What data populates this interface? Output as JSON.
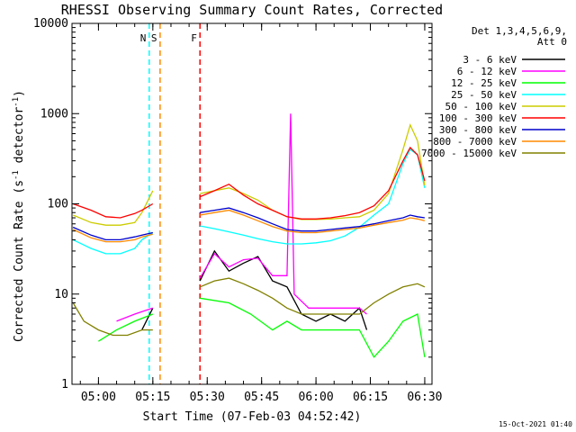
{
  "chart_data": {
    "type": "line",
    "title": "RHESSI Observing Summary Count Rates, Corrected",
    "xlabel": "Start Time (07-Feb-03 04:52:42)",
    "ylabel_main": "Corrected Count Rate (s",
    "ylabel_exp1": "-1",
    "ylabel_mid": " detector",
    "ylabel_exp2": "-1",
    "ylabel_end": ")",
    "y_scale": "log",
    "ylim": [
      1,
      10000
    ],
    "xlim_minutes": [
      "04:52:42",
      "06:32:00"
    ],
    "x_ticks": [
      {
        "label": "05:00",
        "t": "05:00"
      },
      {
        "label": "05:15",
        "t": "05:15"
      },
      {
        "label": "05:30",
        "t": "05:30"
      },
      {
        "label": "05:45",
        "t": "05:45"
      },
      {
        "label": "06:00",
        "t": "06:00"
      },
      {
        "label": "06:15",
        "t": "06:15"
      },
      {
        "label": "06:30",
        "t": "06:30"
      }
    ],
    "y_ticks": [
      {
        "label": "1",
        "v": 1
      },
      {
        "label": "10",
        "v": 10
      },
      {
        "label": "100",
        "v": 100
      },
      {
        "label": "1000",
        "v": 1000
      },
      {
        "label": "10000",
        "v": 10000
      }
    ],
    "legend_header": [
      "Det 1,3,4,5,6,9,",
      "Att 0"
    ],
    "legend_position": "right",
    "series": [
      {
        "name": "3 - 6 keV",
        "color": "#000000",
        "x": [
          "05:12",
          "05:15",
          "05:24",
          "05:28",
          "05:32",
          "05:36",
          "05:40",
          "05:44",
          "05:48",
          "05:52",
          "05:56",
          "06:00",
          "06:04",
          "06:08",
          "06:12",
          "06:14"
        ],
        "y": [
          4,
          7,
          null,
          14,
          30,
          18,
          22,
          26,
          14,
          12,
          6,
          5,
          6,
          5,
          7,
          4
        ]
      },
      {
        "name": "6 - 12 keV",
        "color": "#ff00ff",
        "x": [
          "05:05",
          "05:10",
          "05:15",
          "05:24",
          "05:28",
          "05:32",
          "05:36",
          "05:40",
          "05:44",
          "05:48",
          "05:52",
          "05:53",
          "05:54",
          "05:58",
          "06:02",
          "06:06",
          "06:12",
          "06:14"
        ],
        "y": [
          5,
          6,
          7,
          null,
          15,
          28,
          20,
          24,
          25,
          16,
          16,
          1000,
          10,
          7,
          7,
          7,
          7,
          6
        ]
      },
      {
        "name": "12 - 25 keV",
        "color": "#00ff00",
        "x": [
          "05:00",
          "05:05",
          "05:10",
          "05:15",
          "05:24",
          "05:28",
          "05:36",
          "05:42",
          "05:48",
          "05:52",
          "05:56",
          "06:00",
          "06:06",
          "06:12",
          "06:16",
          "06:20",
          "06:24",
          "06:28",
          "06:30"
        ],
        "y": [
          3,
          4,
          5,
          6,
          null,
          9,
          8,
          6,
          4,
          5,
          4,
          4,
          4,
          4,
          2,
          3,
          5,
          6,
          2
        ]
      },
      {
        "name": "25 - 50 keV",
        "color": "#00ffff",
        "x": [
          "04:53",
          "04:58",
          "05:02",
          "05:06",
          "05:10",
          "05:12",
          "05:15",
          "05:24",
          "05:28",
          "05:32",
          "05:36",
          "05:40",
          "05:44",
          "05:48",
          "05:52",
          "05:56",
          "06:00",
          "06:04",
          "06:08",
          "06:12",
          "06:16",
          "06:20",
          "06:24",
          "06:26",
          "06:28",
          "06:30"
        ],
        "y": [
          40,
          32,
          28,
          28,
          32,
          40,
          48,
          null,
          57,
          53,
          49,
          45,
          41,
          38,
          36,
          36,
          37,
          39,
          44,
          55,
          75,
          100,
          280,
          400,
          350,
          150
        ]
      },
      {
        "name": "50 - 100 keV",
        "color": "#cccc00",
        "x": [
          "04:53",
          "04:58",
          "05:02",
          "05:06",
          "05:10",
          "05:12",
          "05:15",
          "05:24",
          "05:28",
          "05:32",
          "05:36",
          "05:40",
          "05:44",
          "05:48",
          "05:52",
          "05:56",
          "06:00",
          "06:04",
          "06:08",
          "06:12",
          "06:16",
          "06:20",
          "06:24",
          "06:26",
          "06:28",
          "06:30"
        ],
        "y": [
          75,
          62,
          58,
          58,
          62,
          80,
          140,
          null,
          130,
          140,
          150,
          130,
          110,
          85,
          72,
          67,
          67,
          68,
          70,
          72,
          85,
          130,
          400,
          750,
          500,
          160
        ]
      },
      {
        "name": "100 - 300 keV",
        "color": "#ff0000",
        "x": [
          "04:53",
          "04:58",
          "05:02",
          "05:06",
          "05:10",
          "05:12",
          "05:15",
          "05:24",
          "05:28",
          "05:32",
          "05:36",
          "05:40",
          "05:44",
          "05:48",
          "05:52",
          "05:56",
          "06:00",
          "06:04",
          "06:08",
          "06:12",
          "06:16",
          "06:20",
          "06:24",
          "06:26",
          "06:28",
          "06:30"
        ],
        "y": [
          100,
          85,
          72,
          70,
          78,
          85,
          100,
          null,
          120,
          140,
          165,
          125,
          100,
          85,
          72,
          68,
          68,
          70,
          74,
          80,
          95,
          140,
          300,
          420,
          350,
          180
        ]
      },
      {
        "name": "300 - 800 keV",
        "color": "#0000cc",
        "x": [
          "04:53",
          "04:58",
          "05:02",
          "05:06",
          "05:10",
          "05:12",
          "05:15",
          "05:24",
          "05:28",
          "05:32",
          "05:36",
          "05:40",
          "05:44",
          "05:48",
          "05:52",
          "05:56",
          "06:00",
          "06:04",
          "06:08",
          "06:12",
          "06:16",
          "06:20",
          "06:24",
          "06:26",
          "06:28",
          "06:30"
        ],
        "y": [
          55,
          45,
          40,
          40,
          43,
          45,
          48,
          null,
          80,
          85,
          90,
          80,
          70,
          60,
          52,
          50,
          50,
          52,
          54,
          56,
          60,
          65,
          70,
          75,
          72,
          70
        ]
      },
      {
        "name": "800 - 7000 keV",
        "color": "#ff8800",
        "x": [
          "04:53",
          "04:58",
          "05:02",
          "05:06",
          "05:10",
          "05:12",
          "05:15",
          "05:24",
          "05:28",
          "05:32",
          "05:36",
          "05:40",
          "05:44",
          "05:48",
          "05:52",
          "05:56",
          "06:00",
          "06:04",
          "06:08",
          "06:12",
          "06:16",
          "06:20",
          "06:24",
          "06:26",
          "06:28",
          "06:30"
        ],
        "y": [
          52,
          42,
          38,
          38,
          40,
          43,
          46,
          null,
          75,
          80,
          85,
          75,
          65,
          56,
          50,
          48,
          48,
          50,
          52,
          54,
          58,
          62,
          66,
          70,
          68,
          65
        ]
      },
      {
        "name": "7000 - 15000 keV",
        "color": "#808000",
        "x": [
          "04:53",
          "04:56",
          "05:00",
          "05:04",
          "05:08",
          "05:12",
          "05:15",
          "05:24",
          "05:28",
          "05:32",
          "05:36",
          "05:40",
          "05:44",
          "05:48",
          "05:52",
          "05:56",
          "06:00",
          "06:04",
          "06:08",
          "06:12",
          "06:16",
          "06:20",
          "06:24",
          "06:28",
          "06:30"
        ],
        "y": [
          8,
          5,
          4,
          3.5,
          3.5,
          4,
          4,
          null,
          12,
          14,
          15,
          13,
          11,
          9,
          7,
          6,
          6,
          6,
          6,
          6,
          8,
          10,
          12,
          13,
          12
        ]
      }
    ],
    "annotations": [
      {
        "label": "N",
        "t": "05:14",
        "color": "#00ffff"
      },
      {
        "label": "S",
        "t": "05:17",
        "color": "#ff8800"
      },
      {
        "label": "F",
        "t": "05:28",
        "color": "#ff0000"
      }
    ],
    "footer_stamp": "15-Oct-2021 01:40"
  }
}
